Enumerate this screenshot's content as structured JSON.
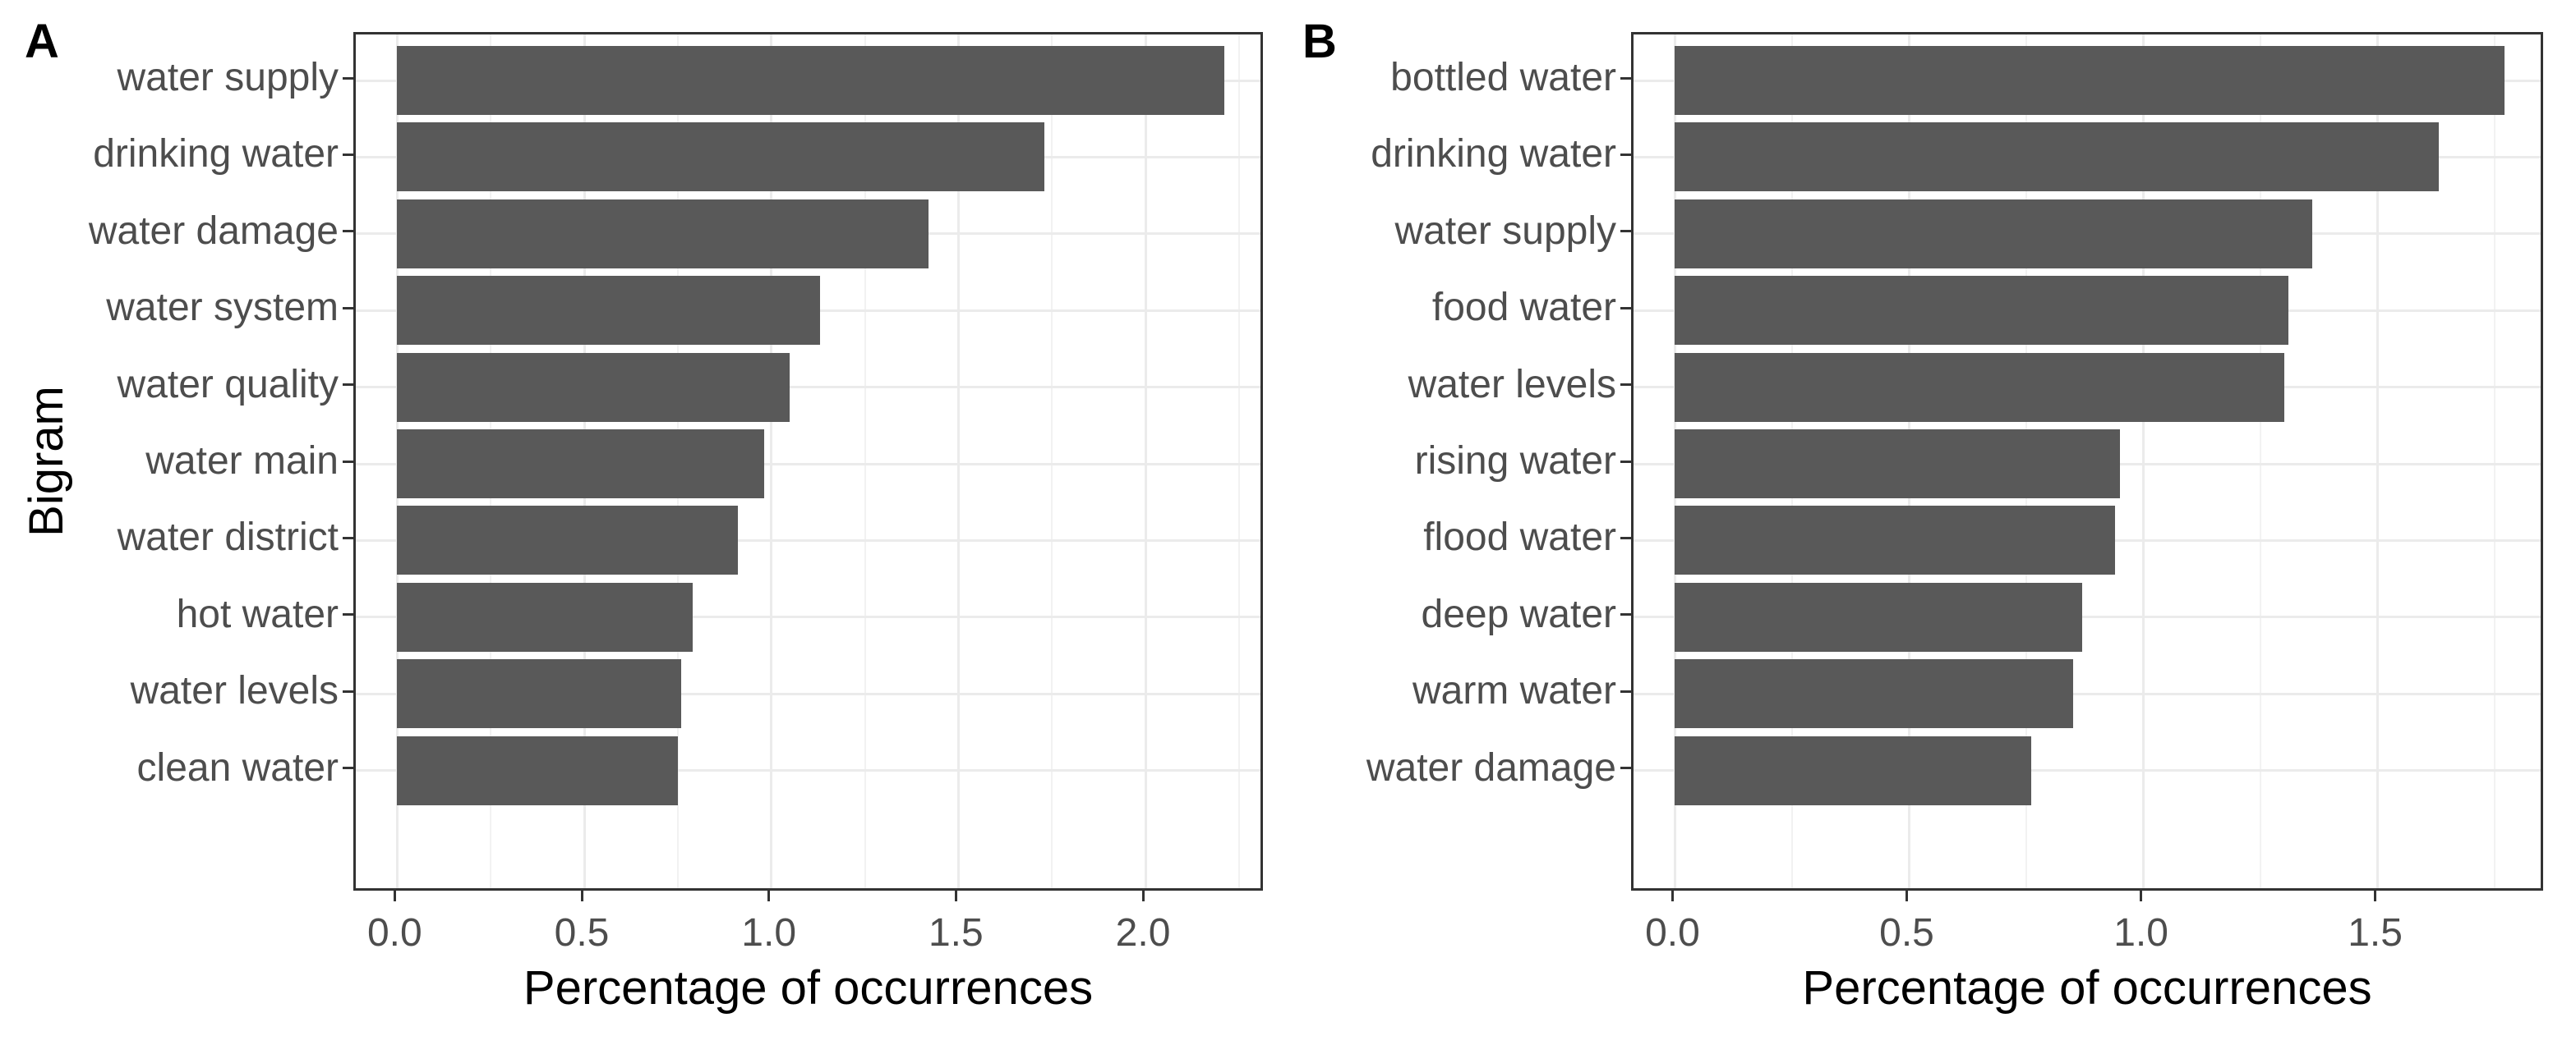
{
  "figure_title": "",
  "style": {
    "bar_color": "#595959",
    "panel_border_color": "#333333",
    "grid_major_color": "#ebebeb",
    "grid_minor_color": "#f2f2f2",
    "tick_color": "#333333",
    "axis_text_color": "#4d4d4d",
    "title_text_color": "#000000",
    "background_color": "#ffffff"
  },
  "chart_data": [
    {
      "type": "bar",
      "orientation": "horizontal",
      "title": "A",
      "ylabel": "Bigram",
      "xlabel": "Percentage of occurrences",
      "categories": [
        "water supply",
        "drinking water",
        "water damage",
        "water system",
        "water quality",
        "water main",
        "water district",
        "hot water",
        "water levels",
        "clean water"
      ],
      "values": [
        2.21,
        1.73,
        1.42,
        1.13,
        1.05,
        0.98,
        0.91,
        0.79,
        0.76,
        0.75
      ],
      "x_ticks": [
        0.0,
        0.5,
        1.0,
        1.5,
        2.0
      ],
      "x_tick_labels": [
        "0.0",
        "0.5",
        "1.0",
        "1.5",
        "2.0"
      ],
      "xlim": [
        0,
        2.32
      ],
      "grid": "major and minor vertical, major horizontal",
      "legend": "none"
    },
    {
      "type": "bar",
      "orientation": "horizontal",
      "title": "B",
      "ylabel": "",
      "xlabel": "Percentage of occurrences",
      "categories": [
        "bottled water",
        "drinking water",
        "water supply",
        "food water",
        "water levels",
        "rising water",
        "flood water",
        "deep water",
        "warm water",
        "water damage"
      ],
      "values": [
        1.77,
        1.63,
        1.36,
        1.31,
        1.3,
        0.95,
        0.94,
        0.87,
        0.85,
        0.76
      ],
      "x_ticks": [
        0.0,
        0.5,
        1.0,
        1.5
      ],
      "x_tick_labels": [
        "0.0",
        "0.5",
        "1.0",
        "1.5"
      ],
      "xlim": [
        0,
        1.86
      ],
      "grid": "major and minor vertical, major horizontal",
      "legend": "none"
    }
  ]
}
